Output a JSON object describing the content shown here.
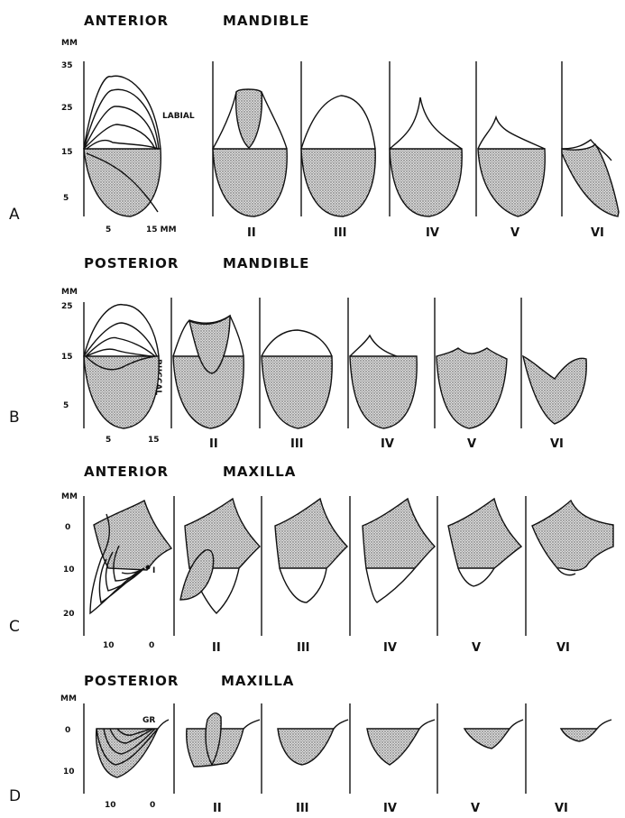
{
  "units_label": "MM",
  "panel_a": {
    "letter": "A",
    "title_left": "ANTERIOR",
    "title_right": "MANDIBLE",
    "y_ticks": [
      "35",
      "25",
      "15",
      "5"
    ],
    "x_ticks": [
      "5",
      "15 MM"
    ],
    "side_label": "LABIAL",
    "classes": [
      "II",
      "III",
      "IV",
      "V",
      "VI"
    ]
  },
  "panel_b": {
    "letter": "B",
    "title_left": "POSTERIOR",
    "title_right": "MANDIBLE",
    "y_ticks": [
      "25",
      "15",
      "5"
    ],
    "x_ticks": [
      "5",
      "15"
    ],
    "side_label": "BUCCAL",
    "classes": [
      "II",
      "III",
      "IV",
      "V",
      "VI"
    ]
  },
  "panel_c": {
    "letter": "C",
    "title_left": "ANTERIOR",
    "title_right": "MAXILLA",
    "y_ticks": [
      "0",
      "10",
      "20"
    ],
    "x_ticks": [
      "10",
      "0"
    ],
    "point_label": "I",
    "classes": [
      "II",
      "III",
      "IV",
      "V",
      "VI"
    ]
  },
  "panel_d": {
    "letter": "D",
    "title_left": "POSTERIOR",
    "title_right": "MAXILLA",
    "y_ticks": [
      "0",
      "10"
    ],
    "x_ticks": [
      "10",
      "0"
    ],
    "point_label": "GR",
    "classes": [
      "II",
      "III",
      "IV",
      "V",
      "VI"
    ]
  }
}
